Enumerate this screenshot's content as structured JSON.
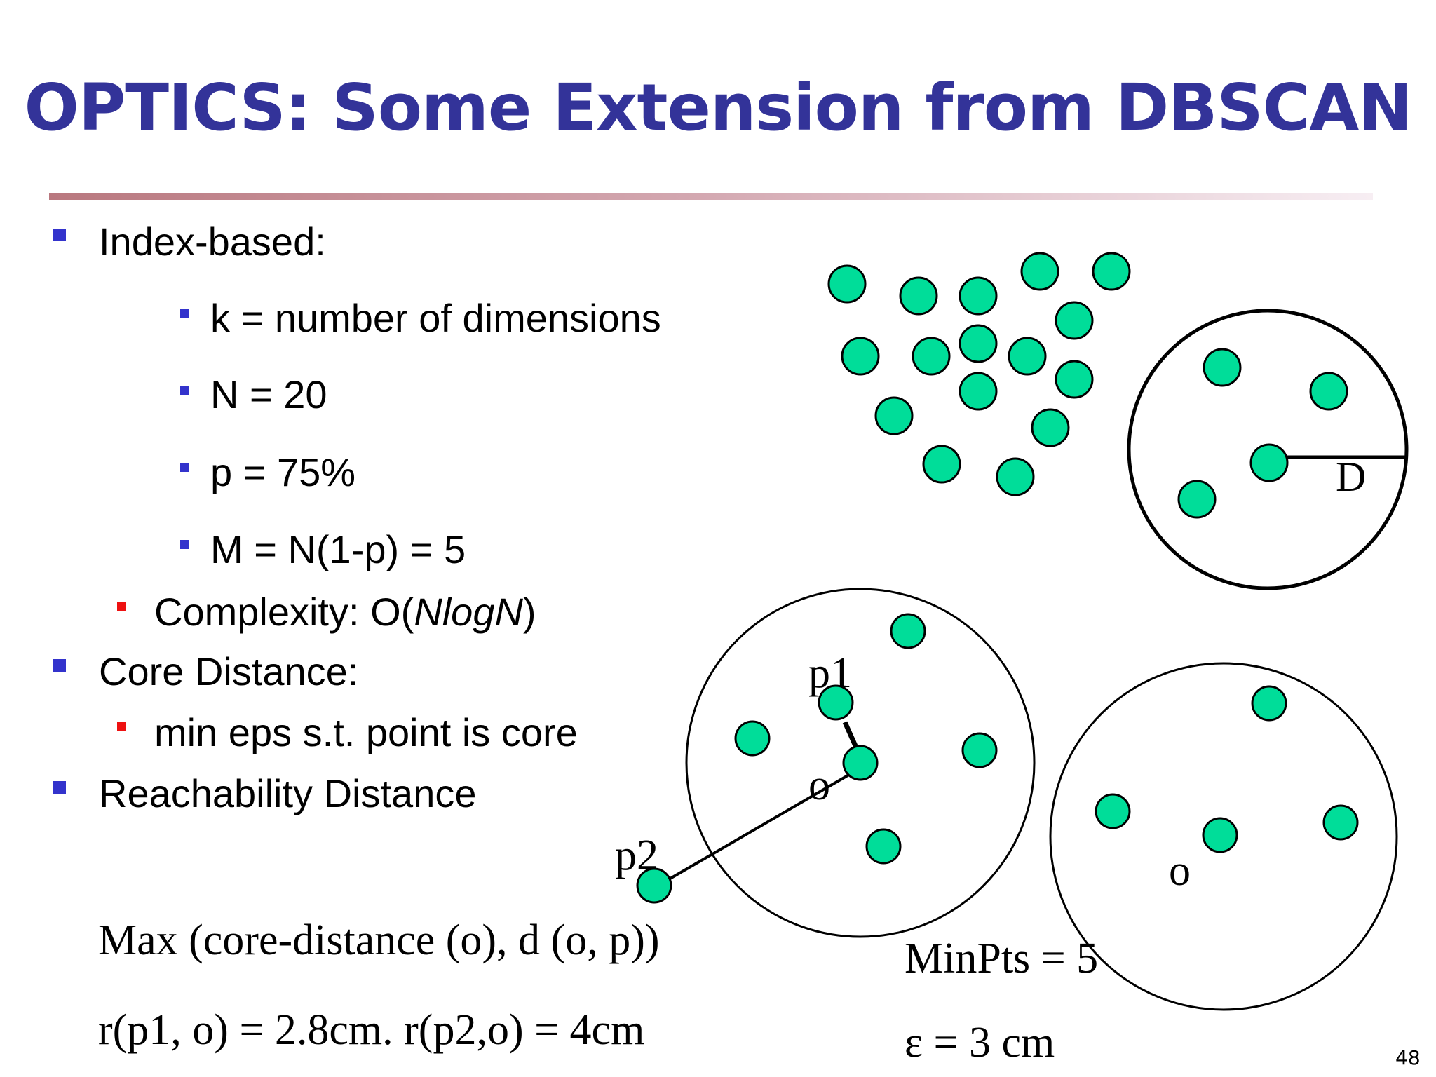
{
  "slide": {
    "title": "OPTICS: Some Extension from DBSCAN",
    "page_number": "48",
    "colors": {
      "title": "#333399",
      "point_fill": "#00dd99",
      "bullet_blue": "#3333cc",
      "bullet_red": "#ee1111"
    }
  },
  "bullets": {
    "index_based": "Index-based:",
    "k": "k = number of dimensions",
    "n": "N = 20",
    "p": "p = 75%",
    "m": "M = N(1-p) = 5",
    "complexity_prefix": "Complexity:  O(",
    "complexity_italic": "NlogN",
    "complexity_suffix": ")",
    "core_distance": "Core Distance:",
    "core_def": "min eps s.t. point is core",
    "reachability": "Reachability Distance"
  },
  "formulas": {
    "max": "Max (core-distance (o), d (o, p))",
    "r_values": "r(p1, o) = 2.8cm.  r(p2,o) = 4cm",
    "minpts": "MinPts = 5",
    "eps": "ε  = 3 cm"
  },
  "diagram": {
    "label_d": "D",
    "label_p1": "p1",
    "label_p2": "p2",
    "label_o_left": "o",
    "label_o_right": "o"
  }
}
